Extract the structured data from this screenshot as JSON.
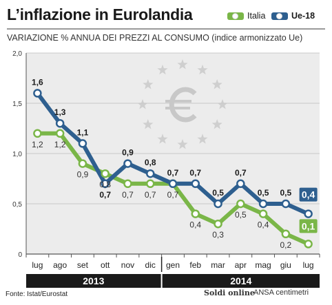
{
  "header": {
    "title": "L’inflazione in Eurolandia",
    "subtitle": "VARIAZIONE % ANNUA DEI PREZZI AL CONSUMO (indice armonizzato Ue)"
  },
  "footer": {
    "source": "Fonte: Istat/Eurostat",
    "logo_soldi": "Soldi online",
    "logo_ansa": "ANSA centimetri"
  },
  "colors": {
    "italia": "#7ab648",
    "ue": "#2e5f8f",
    "year_bar": "#1a1a1a",
    "year_text": "#ffffff",
    "grid": "#c9c9c9",
    "plot_bg": "#ececec"
  },
  "chart_data": {
    "type": "line",
    "title": "L’inflazione in Eurolandia",
    "subtitle": "VARIAZIONE % ANNUA DEI PREZZI AL CONSUMO (indice armonizzato Ue)",
    "xlabel": "",
    "ylabel": "",
    "ylim": [
      0,
      2.0
    ],
    "yticks": [
      "0",
      "0,5",
      "1,0",
      "1,5",
      "2,0"
    ],
    "ytick_values": [
      0,
      0.5,
      1.0,
      1.5,
      2.0
    ],
    "grid": true,
    "legend_position": "top-right",
    "categories": [
      "lug",
      "ago",
      "set",
      "ott",
      "nov",
      "dic",
      "gen",
      "feb",
      "mar",
      "apr",
      "mag",
      "giu",
      "lug"
    ],
    "years": [
      {
        "label": "2013",
        "from": 0,
        "to": 5
      },
      {
        "label": "2014",
        "from": 6,
        "to": 12
      }
    ],
    "series": [
      {
        "name": "Italia",
        "color": "#7ab648",
        "values": [
          1.2,
          1.2,
          0.9,
          0.8,
          0.7,
          0.7,
          0.7,
          0.4,
          0.3,
          0.5,
          0.4,
          0.2,
          0.1
        ],
        "labels": [
          "1,2",
          "1,2",
          "0,9",
          "0,8",
          "0,7",
          "0,7",
          "0,7",
          "0,4",
          "0,3",
          "0,5",
          "0,4",
          "0,2",
          "0,1"
        ]
      },
      {
        "name": "Ue-18",
        "color": "#2e5f8f",
        "values": [
          1.6,
          1.3,
          1.1,
          0.7,
          0.9,
          0.8,
          0.7,
          0.7,
          0.5,
          0.7,
          0.5,
          0.5,
          0.4
        ],
        "labels": [
          "1,6",
          "1,3",
          "1,1",
          "0,7",
          "0,9",
          "0,8",
          "0,7",
          "0,7",
          "0,5",
          "0,7",
          "0,5",
          "0,5",
          "0,4"
        ]
      }
    ]
  }
}
